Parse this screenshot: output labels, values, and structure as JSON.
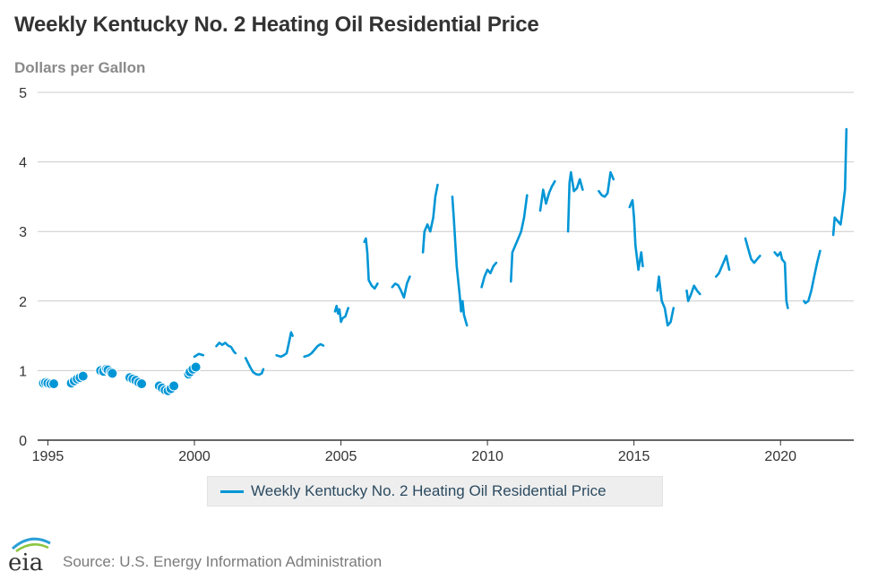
{
  "chart_data": {
    "type": "line",
    "title": "Weekly Kentucky No. 2 Heating Oil Residential Price",
    "ylabel": "Dollars per Gallon",
    "xlim": [
      1994.65,
      2022.5
    ],
    "ylim": [
      0,
      5
    ],
    "yticks": [
      0,
      1,
      2,
      3,
      4,
      5
    ],
    "xticks": [
      1995,
      2000,
      2005,
      2010,
      2015,
      2020
    ],
    "grid": "horizontal",
    "legend_position": "bottom-center",
    "colors": {
      "series": "#0096d6",
      "grid": "#cccccc",
      "axis": "#333333"
    },
    "series": [
      {
        "name": "Weekly Kentucky No. 2 Heating Oil Residential Price",
        "segments": [
          [
            [
              2000.0,
              1.2
            ],
            [
              2000.15,
              1.24
            ],
            [
              2000.3,
              1.22
            ]
          ],
          [
            [
              2000.75,
              1.35
            ],
            [
              2000.85,
              1.4
            ],
            [
              2000.95,
              1.37
            ],
            [
              2001.05,
              1.4
            ],
            [
              2001.15,
              1.36
            ],
            [
              2001.25,
              1.34
            ],
            [
              2001.35,
              1.27
            ],
            [
              2001.4,
              1.25
            ]
          ],
          [
            [
              2001.75,
              1.18
            ],
            [
              2001.9,
              1.05
            ],
            [
              2002.0,
              0.98
            ],
            [
              2002.1,
              0.95
            ],
            [
              2002.2,
              0.94
            ],
            [
              2002.3,
              0.96
            ],
            [
              2002.35,
              1.02
            ]
          ],
          [
            [
              2002.8,
              1.22
            ],
            [
              2002.95,
              1.2
            ],
            [
              2003.05,
              1.22
            ],
            [
              2003.15,
              1.25
            ],
            [
              2003.25,
              1.45
            ],
            [
              2003.3,
              1.55
            ],
            [
              2003.35,
              1.5
            ]
          ],
          [
            [
              2003.75,
              1.2
            ],
            [
              2003.9,
              1.22
            ],
            [
              2004.0,
              1.25
            ],
            [
              2004.1,
              1.3
            ],
            [
              2004.2,
              1.35
            ],
            [
              2004.3,
              1.38
            ],
            [
              2004.4,
              1.36
            ]
          ],
          [
            [
              2004.8,
              1.85
            ],
            [
              2004.85,
              1.93
            ],
            [
              2004.9,
              1.82
            ],
            [
              2004.95,
              1.88
            ],
            [
              2005.0,
              1.7
            ],
            [
              2005.05,
              1.75
            ],
            [
              2005.15,
              1.78
            ],
            [
              2005.25,
              1.9
            ]
          ],
          [
            [
              2005.8,
              2.85
            ],
            [
              2005.85,
              2.9
            ],
            [
              2005.9,
              2.7
            ],
            [
              2005.95,
              2.3
            ],
            [
              2006.05,
              2.22
            ],
            [
              2006.15,
              2.18
            ],
            [
              2006.25,
              2.25
            ]
          ],
          [
            [
              2006.75,
              2.2
            ],
            [
              2006.85,
              2.25
            ],
            [
              2006.95,
              2.23
            ],
            [
              2007.05,
              2.15
            ],
            [
              2007.15,
              2.05
            ],
            [
              2007.25,
              2.25
            ],
            [
              2007.35,
              2.35
            ]
          ],
          [
            [
              2007.8,
              2.7
            ],
            [
              2007.85,
              3.0
            ],
            [
              2007.95,
              3.1
            ],
            [
              2008.05,
              3.0
            ],
            [
              2008.15,
              3.2
            ],
            [
              2008.22,
              3.5
            ],
            [
              2008.3,
              3.67
            ]
          ],
          [
            [
              2008.8,
              3.5
            ],
            [
              2008.85,
              3.2
            ],
            [
              2008.95,
              2.5
            ],
            [
              2009.05,
              2.1
            ],
            [
              2009.1,
              1.85
            ],
            [
              2009.15,
              2.0
            ],
            [
              2009.2,
              1.8
            ],
            [
              2009.3,
              1.65
            ]
          ],
          [
            [
              2009.8,
              2.2
            ],
            [
              2009.9,
              2.35
            ],
            [
              2010.0,
              2.45
            ],
            [
              2010.1,
              2.4
            ],
            [
              2010.2,
              2.5
            ],
            [
              2010.3,
              2.55
            ]
          ],
          [
            [
              2010.8,
              2.28
            ],
            [
              2010.85,
              2.7
            ],
            [
              2010.95,
              2.8
            ],
            [
              2011.05,
              2.9
            ],
            [
              2011.15,
              3.0
            ],
            [
              2011.25,
              3.2
            ],
            [
              2011.35,
              3.52
            ]
          ],
          [
            [
              2011.8,
              3.3
            ],
            [
              2011.9,
              3.6
            ],
            [
              2012.0,
              3.4
            ],
            [
              2012.1,
              3.55
            ],
            [
              2012.2,
              3.65
            ],
            [
              2012.3,
              3.72
            ]
          ],
          [
            [
              2012.75,
              3.0
            ],
            [
              2012.8,
              3.7
            ],
            [
              2012.85,
              3.85
            ],
            [
              2012.95,
              3.58
            ],
            [
              2013.05,
              3.62
            ],
            [
              2013.15,
              3.75
            ],
            [
              2013.25,
              3.6
            ]
          ],
          [
            [
              2013.8,
              3.58
            ],
            [
              2013.9,
              3.52
            ],
            [
              2014.0,
              3.5
            ],
            [
              2014.1,
              3.55
            ],
            [
              2014.2,
              3.85
            ],
            [
              2014.3,
              3.75
            ]
          ],
          [
            [
              2014.85,
              3.35
            ],
            [
              2014.95,
              3.45
            ],
            [
              2015.0,
              3.2
            ],
            [
              2015.05,
              2.8
            ],
            [
              2015.15,
              2.45
            ],
            [
              2015.25,
              2.7
            ],
            [
              2015.3,
              2.5
            ]
          ],
          [
            [
              2015.8,
              2.15
            ],
            [
              2015.85,
              2.35
            ],
            [
              2015.95,
              2.0
            ],
            [
              2016.05,
              1.9
            ],
            [
              2016.15,
              1.65
            ],
            [
              2016.25,
              1.7
            ],
            [
              2016.35,
              1.9
            ]
          ],
          [
            [
              2016.8,
              2.15
            ],
            [
              2016.85,
              2.0
            ],
            [
              2016.95,
              2.1
            ],
            [
              2017.05,
              2.22
            ],
            [
              2017.15,
              2.15
            ],
            [
              2017.25,
              2.1
            ]
          ],
          [
            [
              2017.8,
              2.35
            ],
            [
              2017.9,
              2.4
            ],
            [
              2018.0,
              2.5
            ],
            [
              2018.1,
              2.6
            ],
            [
              2018.15,
              2.65
            ],
            [
              2018.25,
              2.45
            ]
          ],
          [
            [
              2018.8,
              2.9
            ],
            [
              2018.9,
              2.75
            ],
            [
              2019.0,
              2.6
            ],
            [
              2019.1,
              2.55
            ],
            [
              2019.2,
              2.6
            ],
            [
              2019.3,
              2.65
            ]
          ],
          [
            [
              2019.8,
              2.7
            ],
            [
              2019.9,
              2.65
            ],
            [
              2020.0,
              2.7
            ],
            [
              2020.05,
              2.6
            ],
            [
              2020.15,
              2.55
            ],
            [
              2020.2,
              2.0
            ],
            [
              2020.25,
              1.9
            ]
          ],
          [
            [
              2020.8,
              2.0
            ],
            [
              2020.85,
              1.97
            ],
            [
              2020.95,
              2.0
            ],
            [
              2021.05,
              2.15
            ],
            [
              2021.15,
              2.35
            ],
            [
              2021.25,
              2.55
            ],
            [
              2021.35,
              2.72
            ]
          ],
          [
            [
              2021.8,
              2.95
            ],
            [
              2021.85,
              3.2
            ],
            [
              2021.95,
              3.15
            ],
            [
              2022.05,
              3.1
            ],
            [
              2022.1,
              3.25
            ],
            [
              2022.2,
              3.6
            ],
            [
              2022.25,
              4.47
            ]
          ]
        ],
        "points": [
          [
            1994.85,
            0.82
          ],
          [
            1994.92,
            0.83
          ],
          [
            1995.0,
            0.82
          ],
          [
            1995.1,
            0.81
          ],
          [
            1995.2,
            0.81
          ],
          [
            1995.8,
            0.82
          ],
          [
            1995.9,
            0.85
          ],
          [
            1996.0,
            0.88
          ],
          [
            1996.1,
            0.9
          ],
          [
            1996.2,
            0.92
          ],
          [
            1996.8,
            1.0
          ],
          [
            1996.9,
            0.99
          ],
          [
            1997.0,
            1.02
          ],
          [
            1997.05,
            1.01
          ],
          [
            1997.15,
            0.98
          ],
          [
            1997.2,
            0.96
          ],
          [
            1997.8,
            0.9
          ],
          [
            1997.9,
            0.88
          ],
          [
            1998.0,
            0.86
          ],
          [
            1998.1,
            0.83
          ],
          [
            1998.2,
            0.81
          ],
          [
            1998.8,
            0.78
          ],
          [
            1998.9,
            0.75
          ],
          [
            1999.0,
            0.72
          ],
          [
            1999.1,
            0.71
          ],
          [
            1999.2,
            0.74
          ],
          [
            1999.3,
            0.78
          ],
          [
            1999.8,
            0.95
          ],
          [
            1999.85,
            0.98
          ],
          [
            1999.95,
            1.02
          ],
          [
            2000.05,
            1.05
          ]
        ]
      }
    ]
  },
  "labels": {
    "title": "Weekly Kentucky No. 2 Heating Oil Residential Price",
    "units": "Dollars per Gallon",
    "legend": "Weekly Kentucky No. 2 Heating Oil Residential Price",
    "source": "Source: U.S. Energy Information Administration",
    "logo_text": "eia"
  }
}
